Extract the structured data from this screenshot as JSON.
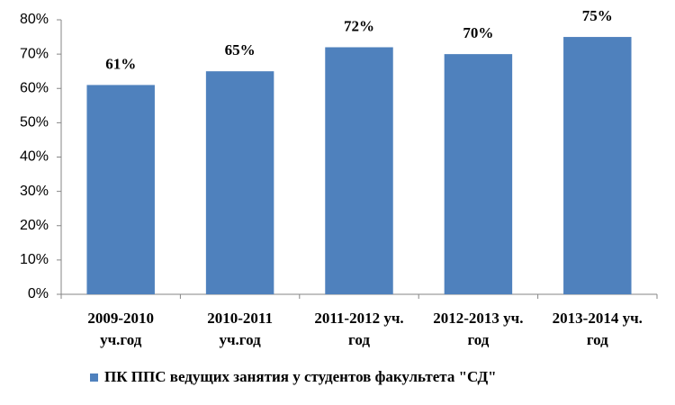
{
  "chart_data": {
    "type": "bar",
    "categories": [
      [
        "2009-2010",
        "уч.год"
      ],
      [
        "2010-2011",
        "уч.год"
      ],
      [
        "2011-2012 уч.",
        "год"
      ],
      [
        "2012-2013 уч.",
        "год"
      ],
      [
        "2013-2014 уч.",
        "год"
      ]
    ],
    "series": [
      {
        "name": "ПК ППС ведущих занятия у студентов факультета \"СД\"",
        "color": "#4f81bd",
        "values": [
          61,
          65,
          72,
          70,
          75
        ],
        "value_labels": [
          "61%",
          "65%",
          "72%",
          "70%",
          "75%"
        ]
      }
    ],
    "ylim": [
      0,
      80
    ],
    "yticks": [
      {
        "value": 0,
        "label": "0%"
      },
      {
        "value": 10,
        "label": "10%"
      },
      {
        "value": 20,
        "label": "20%"
      },
      {
        "value": 30,
        "label": "30%"
      },
      {
        "value": 40,
        "label": "40%"
      },
      {
        "value": 50,
        "label": "50%"
      },
      {
        "value": 60,
        "label": "60%"
      },
      {
        "value": 70,
        "label": "70%"
      },
      {
        "value": 80,
        "label": "80%"
      }
    ],
    "legend": "bottom"
  }
}
